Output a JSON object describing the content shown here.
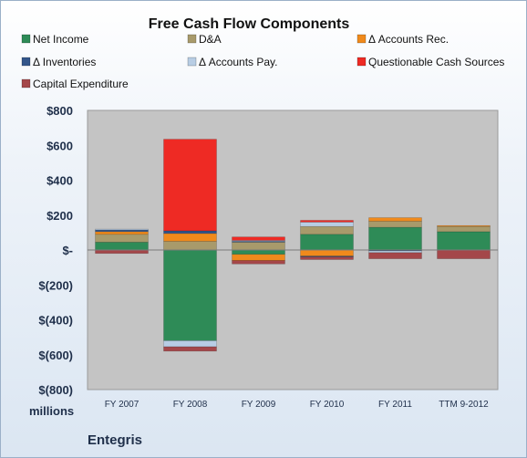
{
  "chart_data": {
    "type": "bar",
    "stacked": true,
    "title": "Free Cash Flow Components",
    "unit_label": "millions",
    "company": "Entegris",
    "categories": [
      "FY 2007",
      "FY 2008",
      "FY 2009",
      "FY 2010",
      "FY 2011",
      "TTM 9-2012"
    ],
    "ylim": [
      -800,
      800
    ],
    "yticks": [
      800,
      600,
      400,
      200,
      0,
      -200,
      -400,
      -600,
      -800
    ],
    "ytick_labels": [
      "$800",
      "$600",
      "$400",
      "$200",
      "$-",
      "$(200)",
      "$(400)",
      "$(600)",
      "$(800)"
    ],
    "grid": false,
    "legend_placement": "top",
    "series": [
      {
        "name": "Net Income",
        "color": "#2e8b57",
        "values": [
          45,
          -520,
          -25,
          90,
          130,
          105
        ]
      },
      {
        "name": "D&A",
        "color": "#a89a6b",
        "values": [
          45,
          50,
          45,
          45,
          35,
          30
        ]
      },
      {
        "name": "Δ Accounts Rec.",
        "color": "#f08a1c",
        "values": [
          15,
          45,
          -35,
          -35,
          20,
          5
        ]
      },
      {
        "name": "Δ Inventories",
        "color": "#34568a",
        "values": [
          10,
          15,
          5,
          -5,
          -5,
          0
        ]
      },
      {
        "name": "Δ Accounts Pay.",
        "color": "#b8cde4",
        "values": [
          5,
          -35,
          5,
          25,
          -10,
          0
        ]
      },
      {
        "name": "Questionable Cash Sources",
        "color": "#ee2a24",
        "values": [
          0,
          525,
          20,
          10,
          0,
          0
        ]
      },
      {
        "name": "Capital Expenditure",
        "color": "#a4474a",
        "values": [
          -20,
          -25,
          -20,
          -15,
          -35,
          -50
        ]
      }
    ]
  }
}
